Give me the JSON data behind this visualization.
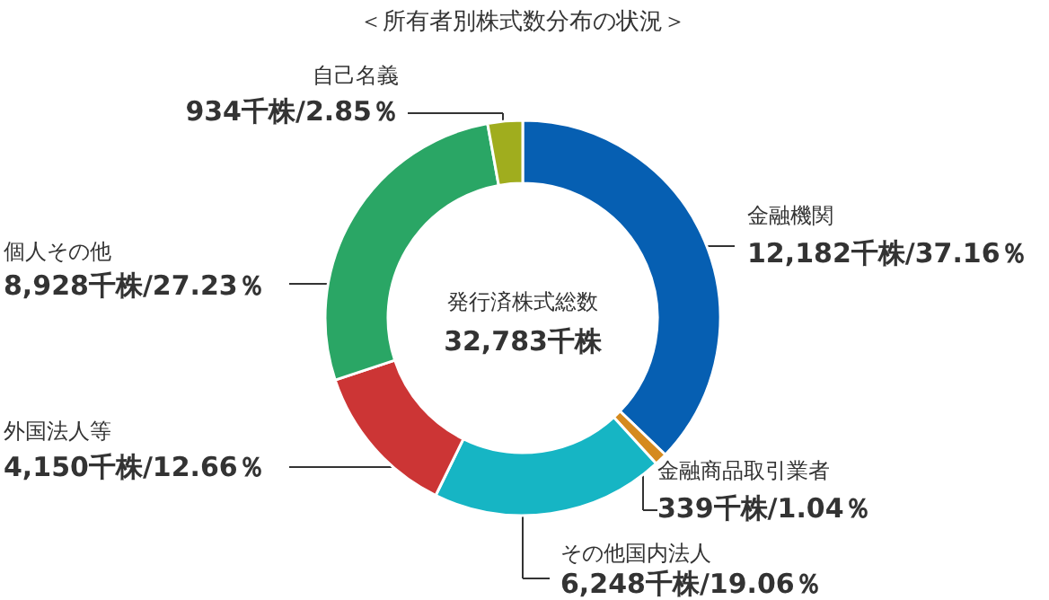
{
  "chart_data": {
    "type": "donut",
    "title": "＜所有者別株式数分布の状況＞",
    "categories": [
      "金融機関",
      "金融商品取引業者",
      "その他国内法人",
      "外国法人等",
      "個人その他",
      "自己名義"
    ],
    "values": [
      12182,
      339,
      6248,
      4150,
      8928,
      934
    ],
    "value_labels": [
      "12,182千株/37.16％",
      "339千株/1.04％",
      "6,248千株/19.06％",
      "4,150千株/12.66％",
      "8,928千株/27.23％",
      "934千株/2.85％"
    ],
    "colors": [
      "#065fb2",
      "#d58a1e",
      "#16b5c4",
      "#cc3535",
      "#2aa665",
      "#a0ad1e"
    ],
    "annotations": [
      "発行済株式総数",
      "32,783千株"
    ]
  }
}
